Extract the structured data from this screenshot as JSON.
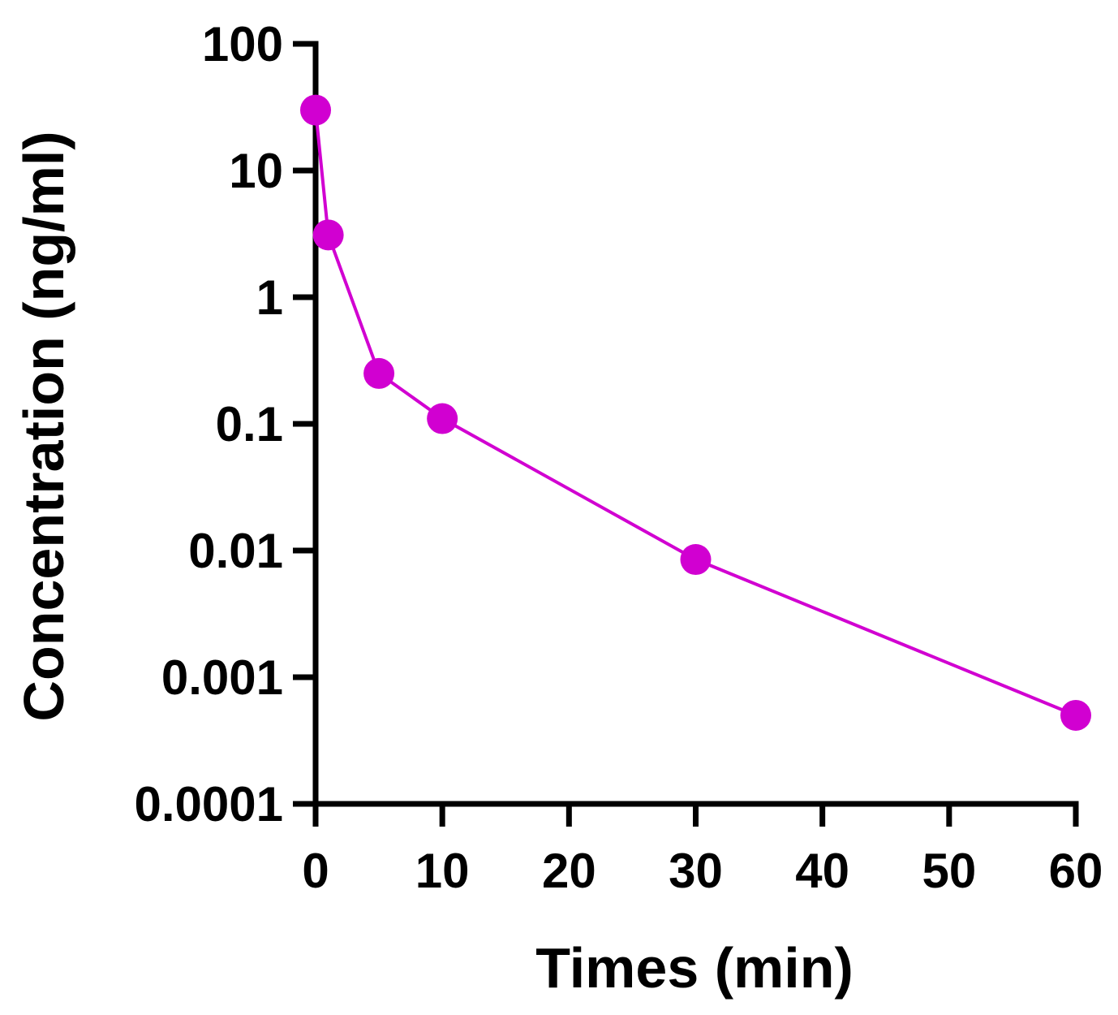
{
  "chart_data": {
    "type": "line",
    "title": "",
    "xlabel": "Times (min)",
    "ylabel": "Concentration (ng/ml)",
    "x_scale": "linear",
    "y_scale": "log",
    "xlim": [
      0,
      60
    ],
    "ylim": [
      0.0001,
      100
    ],
    "x_ticks": [
      0,
      10,
      20,
      30,
      40,
      50,
      60
    ],
    "x_tick_labels": [
      "0",
      "10",
      "20",
      "30",
      "40",
      "50",
      "60"
    ],
    "y_ticks": [
      0.0001,
      0.001,
      0.01,
      0.1,
      1,
      10,
      100
    ],
    "y_tick_labels": [
      "0.0001",
      "0.001",
      "0.01",
      "0.1",
      "1",
      "10",
      "100"
    ],
    "grid": false,
    "legend": "none",
    "series": [
      {
        "name": "Concentration",
        "color": "#d100d1",
        "x": [
          0,
          1,
          5,
          10,
          30,
          60
        ],
        "y": [
          30,
          3.1,
          0.25,
          0.11,
          0.0085,
          0.0005
        ]
      }
    ]
  }
}
